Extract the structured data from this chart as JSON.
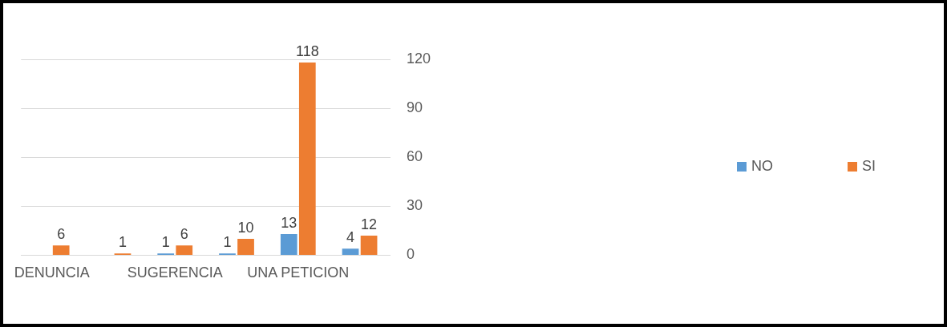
{
  "chart_data": {
    "type": "bar",
    "categories": [
      "DENUNCIA",
      null,
      "SUGERENCIA",
      null,
      "UNA PETICION",
      null
    ],
    "series": [
      {
        "name": "NO",
        "color": "#5b9bd5",
        "values": [
          null,
          null,
          1,
          1,
          13,
          4
        ]
      },
      {
        "name": "SI",
        "color": "#ed7d31",
        "values": [
          6,
          1,
          6,
          10,
          118,
          12
        ]
      }
    ],
    "ylim": [
      0,
      120
    ],
    "yticks": [
      0,
      30,
      60,
      90,
      120
    ],
    "grid": "y",
    "legend": "right",
    "data_labels": true
  }
}
